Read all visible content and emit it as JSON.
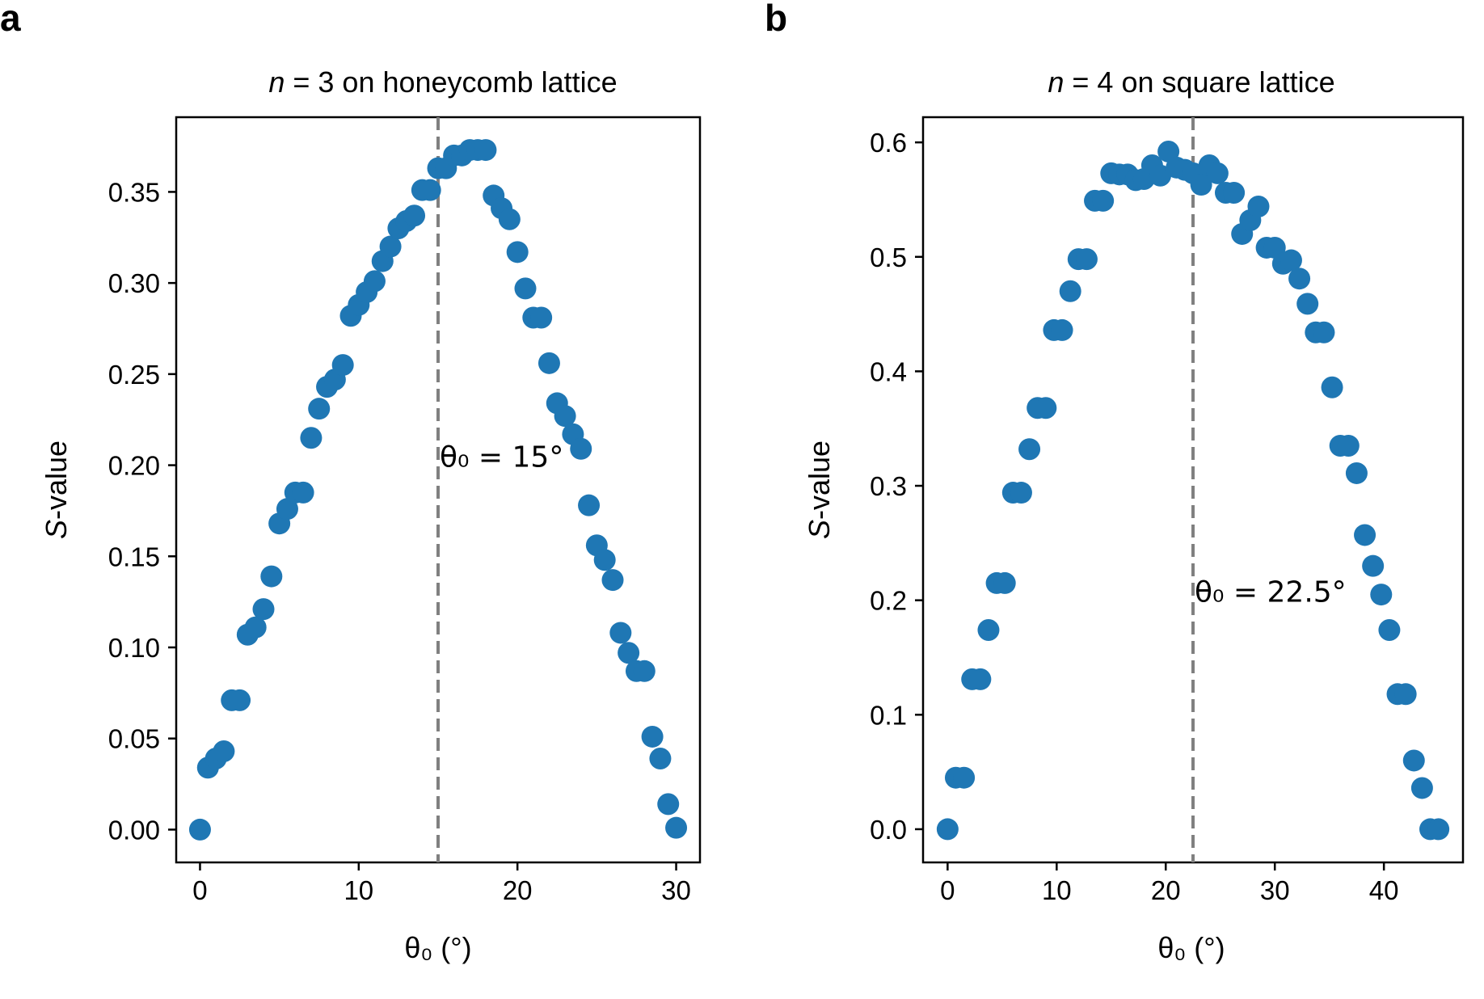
{
  "panels": [
    {
      "label": "a",
      "title_prefix": "n",
      "title_rest": " = 3 on honeycomb lattice",
      "ylabel_prefix": "S",
      "ylabel_rest": "-value",
      "xlabel": "θ₀ (°)",
      "annotation": "θ₀ = 15°"
    },
    {
      "label": "b",
      "title_prefix": "n",
      "title_rest": " = 4 on square lattice",
      "ylabel_prefix": "S",
      "ylabel_rest": "-value",
      "xlabel": "θ₀ (°)",
      "annotation": "θ₀ = 22.5°"
    }
  ],
  "chart_data": [
    {
      "type": "scatter",
      "title": "n = 3 on honeycomb lattice",
      "xlabel": "θ₀ (°)",
      "ylabel": "S-value",
      "xlim": [
        -1.5,
        31.5
      ],
      "ylim": [
        -0.018,
        0.391
      ],
      "xticks": [
        0,
        10,
        20,
        30
      ],
      "xtick_labels": [
        "0",
        "10",
        "20",
        "30"
      ],
      "yticks": [
        0.0,
        0.05,
        0.1,
        0.15,
        0.2,
        0.25,
        0.3,
        0.35
      ],
      "ytick_labels": [
        "0.00",
        "0.05",
        "0.10",
        "0.15",
        "0.20",
        "0.25",
        "0.30",
        "0.35"
      ],
      "grid": false,
      "vline": 15,
      "annotation": {
        "text": "θ₀ = 15°",
        "x": 15,
        "y": 0.2
      },
      "marker_color": "#1f77b4",
      "reference_line_color": "#808080",
      "series": [
        {
          "x": [
            0,
            0.5,
            1.0,
            1.5,
            2.0,
            2.5,
            3.0,
            3.5,
            4.0,
            4.5,
            5.0,
            5.5,
            6.0,
            6.5,
            7.0,
            7.5,
            8.0,
            8.5,
            9.0,
            9.5,
            10.0,
            10.5,
            11.0,
            11.5,
            12.0,
            12.5,
            13.0,
            13.5,
            14.0,
            14.5,
            15.0,
            15.5,
            16.0,
            16.5,
            17.0,
            17.5,
            18.0,
            18.5,
            19.0,
            19.5,
            20.0,
            20.5,
            21.0,
            21.5,
            22.0,
            22.5,
            23.0,
            23.5,
            24.0,
            24.5,
            25.0,
            25.5,
            26.0,
            26.5,
            27.0,
            27.5,
            28.0,
            28.5,
            29.0,
            29.5,
            30.0
          ],
          "y": [
            0.0,
            0.034,
            0.039,
            0.043,
            0.071,
            0.071,
            0.107,
            0.111,
            0.121,
            0.139,
            0.168,
            0.176,
            0.185,
            0.185,
            0.215,
            0.231,
            0.243,
            0.247,
            0.255,
            0.282,
            0.288,
            0.295,
            0.301,
            0.312,
            0.32,
            0.33,
            0.334,
            0.337,
            0.351,
            0.351,
            0.363,
            0.363,
            0.37,
            0.37,
            0.373,
            0.373,
            0.373,
            0.348,
            0.341,
            0.335,
            0.317,
            0.297,
            0.281,
            0.281,
            0.256,
            0.234,
            0.227,
            0.217,
            0.209,
            0.178,
            0.156,
            0.148,
            0.137,
            0.108,
            0.097,
            0.087,
            0.087,
            0.051,
            0.039,
            0.014,
            0.001
          ]
        }
      ]
    },
    {
      "type": "scatter",
      "title": "n = 4 on square lattice",
      "xlabel": "θ₀ (°)",
      "ylabel": "S-value",
      "xlim": [
        -2.25,
        47.25
      ],
      "ylim": [
        -0.029,
        0.622
      ],
      "xticks": [
        0,
        10,
        20,
        30,
        40
      ],
      "xtick_labels": [
        "0",
        "10",
        "20",
        "30",
        "40"
      ],
      "yticks": [
        0.0,
        0.1,
        0.2,
        0.3,
        0.4,
        0.5,
        0.6
      ],
      "ytick_labels": [
        "0.0",
        "0.1",
        "0.2",
        "0.3",
        "0.4",
        "0.5",
        "0.6"
      ],
      "grid": false,
      "vline": 22.5,
      "annotation": {
        "text": "θ₀ = 22.5°",
        "x": 22.5,
        "y": 0.2
      },
      "marker_color": "#1f77b4",
      "reference_line_color": "#808080",
      "series": [
        {
          "x": [
            0,
            0.75,
            1.5,
            2.25,
            3.0,
            3.75,
            4.5,
            5.25,
            6.0,
            6.75,
            7.5,
            8.25,
            9.0,
            9.75,
            10.5,
            11.25,
            12.0,
            12.75,
            13.5,
            14.25,
            15.0,
            15.75,
            16.5,
            17.25,
            18.0,
            18.75,
            19.5,
            20.25,
            21.0,
            21.75,
            22.5,
            23.25,
            24.0,
            24.75,
            25.5,
            26.25,
            27.0,
            27.75,
            28.5,
            29.25,
            30.0,
            30.75,
            31.5,
            32.25,
            33.0,
            33.75,
            34.5,
            35.25,
            36.0,
            36.75,
            37.5,
            38.25,
            39.0,
            39.75,
            40.5,
            41.25,
            42.0,
            42.75,
            43.5,
            44.25,
            45.0
          ],
          "y": [
            0.0,
            0.045,
            0.045,
            0.131,
            0.131,
            0.174,
            0.215,
            0.215,
            0.294,
            0.294,
            0.332,
            0.368,
            0.368,
            0.436,
            0.436,
            0.47,
            0.498,
            0.498,
            0.549,
            0.549,
            0.573,
            0.572,
            0.572,
            0.567,
            0.568,
            0.58,
            0.571,
            0.592,
            0.578,
            0.576,
            0.573,
            0.563,
            0.58,
            0.573,
            0.556,
            0.556,
            0.52,
            0.532,
            0.544,
            0.508,
            0.508,
            0.494,
            0.497,
            0.481,
            0.459,
            0.434,
            0.434,
            0.386,
            0.335,
            0.335,
            0.311,
            0.257,
            0.23,
            0.205,
            0.174,
            0.118,
            0.118,
            0.06,
            0.036,
            0.0,
            0.0
          ]
        }
      ]
    }
  ]
}
